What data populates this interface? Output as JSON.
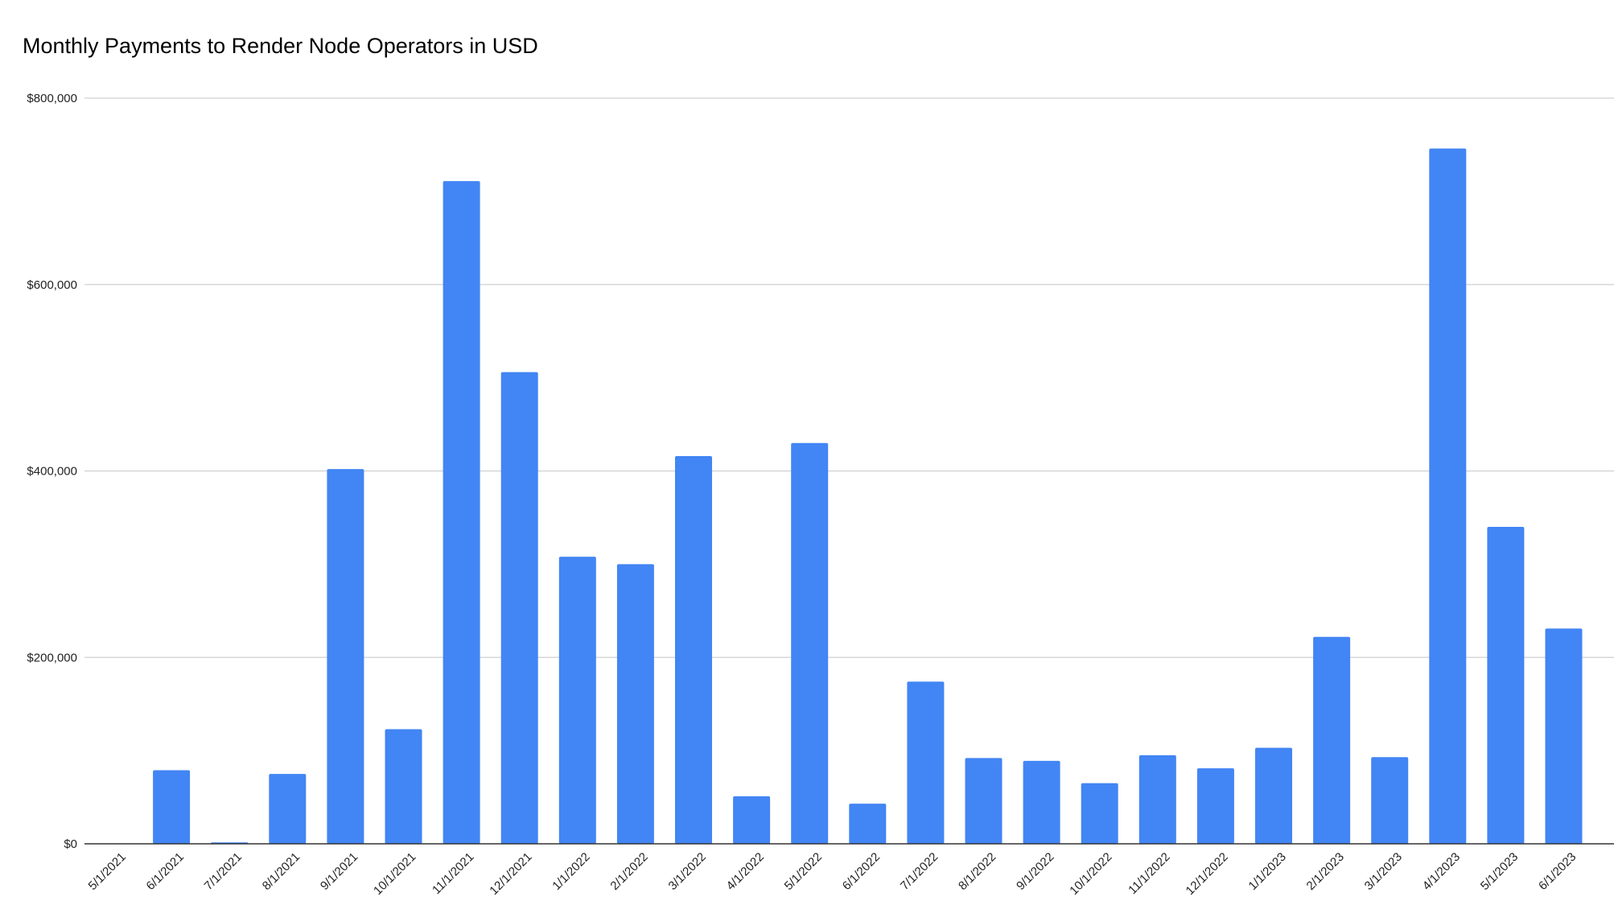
{
  "chart_data": {
    "type": "bar",
    "title": "Monthly Payments to Render Node Operators in USD",
    "xlabel": "",
    "ylabel": "",
    "ylim": [
      0,
      800000
    ],
    "y_ticks": [
      0,
      200000,
      400000,
      600000,
      800000
    ],
    "y_tick_labels": [
      "$0",
      "$200,000",
      "$400,000",
      "$600,000",
      "$800,000"
    ],
    "grid": "horizontal",
    "bar_color": "#4285F4",
    "categories": [
      "5/1/2021",
      "6/1/2021",
      "7/1/2021",
      "8/1/2021",
      "9/1/2021",
      "10/1/2021",
      "11/1/2021",
      "12/1/2021",
      "1/1/2022",
      "2/1/2022",
      "3/1/2022",
      "4/1/2022",
      "5/1/2022",
      "6/1/2022",
      "7/1/2022",
      "8/1/2022",
      "9/1/2022",
      "10/1/2022",
      "11/1/2022",
      "12/1/2022",
      "1/1/2023",
      "2/1/2023",
      "3/1/2023",
      "4/1/2023",
      "5/1/2023",
      "6/1/2023"
    ],
    "values": [
      0,
      79000,
      1500,
      75000,
      402000,
      123000,
      711000,
      506000,
      308000,
      300000,
      416000,
      51000,
      430000,
      43000,
      174000,
      92000,
      89000,
      65000,
      95000,
      81000,
      103000,
      222000,
      93000,
      746000,
      340000,
      231000
    ]
  }
}
